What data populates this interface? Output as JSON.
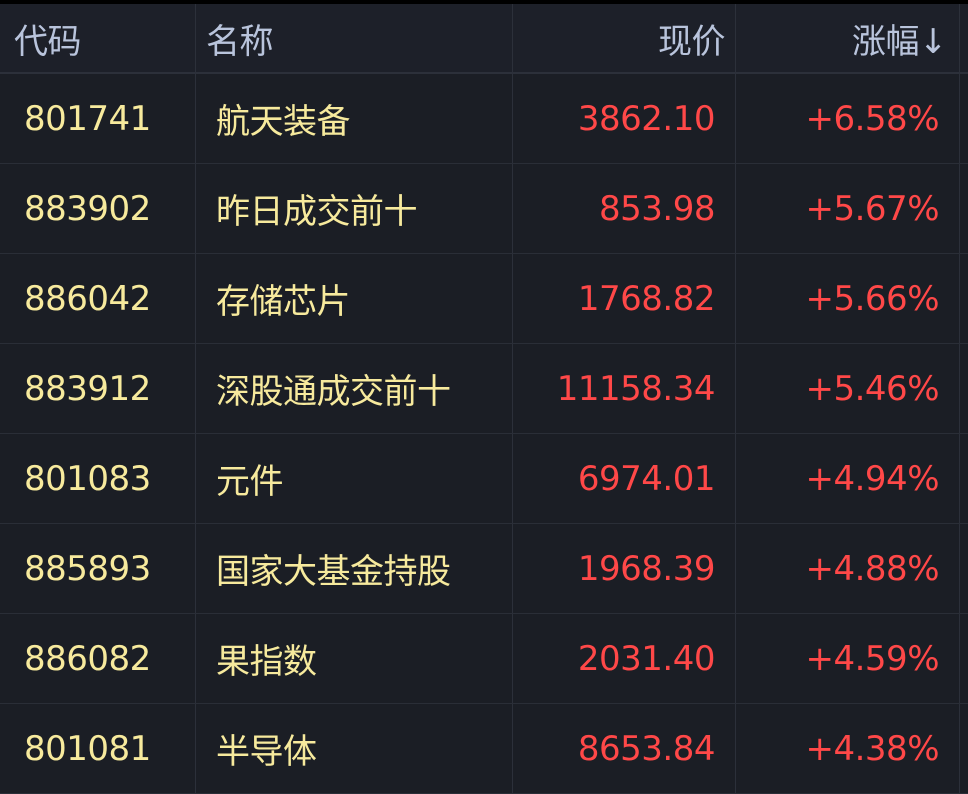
{
  "header": {
    "code": "代码",
    "name": "名称",
    "price": "现价",
    "change": "涨幅↓"
  },
  "colors": {
    "code": "#f7ea9d",
    "up": "#ff4848",
    "header": "#b9c4dc",
    "background": "#1b1e25"
  },
  "rows": [
    {
      "code": "801741",
      "name": "航天装备",
      "price": "3862.10",
      "change": "+6.58%"
    },
    {
      "code": "883902",
      "name": "昨日成交前十",
      "price": "853.98",
      "change": "+5.67%"
    },
    {
      "code": "886042",
      "name": "存储芯片",
      "price": "1768.82",
      "change": "+5.66%"
    },
    {
      "code": "883912",
      "name": "深股通成交前十",
      "price": "11158.34",
      "change": "+5.46%"
    },
    {
      "code": "801083",
      "name": "元件",
      "price": "6974.01",
      "change": "+4.94%"
    },
    {
      "code": "885893",
      "name": "国家大基金持股",
      "price": "1968.39",
      "change": "+4.88%"
    },
    {
      "code": "886082",
      "name": "果指数",
      "price": "2031.40",
      "change": "+4.59%"
    },
    {
      "code": "801081",
      "name": "半导体",
      "price": "8653.84",
      "change": "+4.38%"
    }
  ]
}
